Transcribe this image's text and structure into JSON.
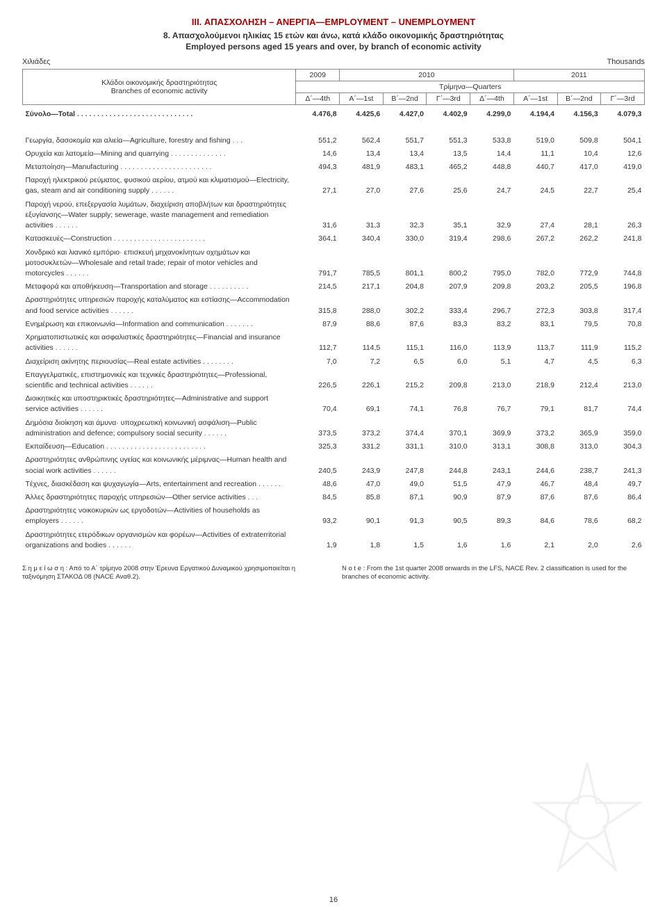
{
  "header": {
    "section": "III. ΑΠΑΣΧΟΛΗΣΗ – ΑΝΕΡΓΙΑ—EMPLOYMENT – UNEMPLOYMENT",
    "title_gr": "8. Απασχολούμενοι ηλικίας 15 ετών και άνω, κατά κλάδο οικονομικής δραστηριότητας",
    "title_en": "Employed persons aged 15 years and over, by branch of economic activity",
    "unit_left": "Xιλιάδες",
    "unit_right": "Thousands"
  },
  "table_header": {
    "stub_gr": "Κλάδοι οικονομικής δραστηριότητας",
    "stub_en": "Branches of economic activity",
    "y2009": "2009",
    "y2010": "2010",
    "y2011": "2011",
    "quarters": "Τρίμηνα—Quarters",
    "cols": [
      "Δ΄—4th",
      "A΄—1st",
      "B΄—2nd",
      "Γ΄—3rd",
      "Δ΄—4th",
      "A΄—1st",
      "B΄—2nd",
      "Γ΄—3rd"
    ]
  },
  "total": {
    "label": "Σύνολο—Total",
    "values": [
      "4.476,8",
      "4.425,6",
      "4.427,0",
      "4.402,9",
      "4.299,0",
      "4.194,4",
      "4.156,3",
      "4.079,3"
    ]
  },
  "rows": [
    {
      "label": "Γεωργία, δασοκομία και αλιεία—Agriculture, forestry and fishing",
      "values": [
        "551,2",
        "562,4",
        "551,7",
        "551,3",
        "533,8",
        "519,0",
        "509,8",
        "504,1"
      ]
    },
    {
      "label": "Ορυχεία και λατομεία—Mining and quarrying",
      "values": [
        "14,6",
        "13,4",
        "13,4",
        "13,5",
        "14,4",
        "11,1",
        "10,4",
        "12,6"
      ]
    },
    {
      "label": "Mεταποίηση—Manufacturing",
      "values": [
        "494,3",
        "481,9",
        "483,1",
        "465,2",
        "448,8",
        "440,7",
        "417,0",
        "419,0"
      ]
    },
    {
      "label": "Παροχή ηλεκτρικού ρεύματος, φυσικού αερίου, ατμού και κλιματισμού—Electricity, gas, steam and air conditioning supply",
      "indent": true,
      "values": [
        "27,1",
        "27,0",
        "27,6",
        "25,6",
        "24,7",
        "24,5",
        "22,7",
        "25,4"
      ]
    },
    {
      "label": "Παροχή νερού, επεξεργασία λυμάτων, διαχείριση αποβλήτων και δραστηριότητες εξυγίανσης—Water supply; sewerage, waste management and remediation activities",
      "indent": true,
      "values": [
        "31,6",
        "31,3",
        "32,3",
        "35,1",
        "32,9",
        "27,4",
        "28,1",
        "26,3"
      ]
    },
    {
      "label": "Κατασκευές—Construction",
      "values": [
        "364,1",
        "340,4",
        "330,0",
        "319,4",
        "298,6",
        "267,2",
        "262,2",
        "241,8"
      ]
    },
    {
      "label": "Xονδρικό και λιανικό εμπόριο· επισκευή μηχανοκίνητων οχημάτων και μοτοσυκλετών—Wholesale and retail trade; repair of motor vehicles and motorcycles",
      "indent": true,
      "values": [
        "791,7",
        "785,5",
        "801,1",
        "800,2",
        "795,0",
        "782,0",
        "772,9",
        "744,8"
      ]
    },
    {
      "label": "Μεταφορά και αποθήκευση—Transportation and storage",
      "values": [
        "214,5",
        "217,1",
        "204,8",
        "207,9",
        "209,8",
        "203,2",
        "205,5",
        "196,8"
      ]
    },
    {
      "label": "Δραστηριότητες υπηρεσιών παροχής καταλύματος και εστίασης—Accommodation and food service activities",
      "indent": true,
      "values": [
        "315,8",
        "288,0",
        "302,2",
        "333,4",
        "296,7",
        "272,3",
        "303,8",
        "317,4"
      ]
    },
    {
      "label": "Eνημέρωση και επικοινωνία—Information and communication",
      "values": [
        "87,9",
        "88,6",
        "87,6",
        "83,3",
        "83,2",
        "83,1",
        "79,5",
        "70,8"
      ]
    },
    {
      "label": "Xρηματοπιστωτικές και ασφαλιστικές δραστηριότητες—Financial and insurance activities",
      "indent": true,
      "values": [
        "112,7",
        "114,5",
        "115,1",
        "116,0",
        "113,9",
        "113,7",
        "111,9",
        "115,2"
      ]
    },
    {
      "label": "Διαχείριση ακίνητης περιουσίας—Real estate activities",
      "values": [
        "7,0",
        "7,2",
        "6,5",
        "6,0",
        "5,1",
        "4,7",
        "4,5",
        "6,3"
      ]
    },
    {
      "label": "Eπαγγελματικές, επιστημονικές και τεχνικές δραστηριότητες—Professional, scientific and technical activities",
      "indent": true,
      "values": [
        "226,5",
        "226,1",
        "215,2",
        "209,8",
        "213,0",
        "218,9",
        "212,4",
        "213,0"
      ]
    },
    {
      "label": "Διοικητικές και υποστηρικτικές δραστηριότητες—Administrative and support service activities",
      "indent": true,
      "values": [
        "70,4",
        "69,1",
        "74,1",
        "76,8",
        "76,7",
        "79,1",
        "81,7",
        "74,4"
      ]
    },
    {
      "label": "Δημόσια διοίκηση και άμυνα· υποχρεωτική κοινωνική ασφάλιση—Public administration and defence; compulsory social security",
      "indent": true,
      "values": [
        "373,5",
        "373,2",
        "374,4",
        "370,1",
        "369,9",
        "373,2",
        "365,9",
        "359,0"
      ]
    },
    {
      "label": "Eκπαίδευση—Education",
      "values": [
        "325,3",
        "331,2",
        "331,1",
        "310,0",
        "313,1",
        "308,8",
        "313,0",
        "304,3"
      ]
    },
    {
      "label": "Δραστηριότητες ανθρώπινης υγείας και κοινωνικής μέριμνας—Human health and social work activities",
      "indent": true,
      "values": [
        "240,5",
        "243,9",
        "247,8",
        "244,8",
        "243,1",
        "244,6",
        "238,7",
        "241,3"
      ]
    },
    {
      "label": "Tέχνες, διασκέδαση και ψυχαγωγία—Arts, entertainment and recreation",
      "indent": true,
      "values": [
        "48,6",
        "47,0",
        "49,0",
        "51,5",
        "47,9",
        "46,7",
        "48,4",
        "49,7"
      ]
    },
    {
      "label": "Άλλες δραστηριότητες παροχής υπηρεσιών—Other service activities",
      "values": [
        "84,5",
        "85,8",
        "87,1",
        "90,9",
        "87,9",
        "87,6",
        "87,6",
        "86,4"
      ]
    },
    {
      "label": "Δραστηριότητες νοικοκυριών ως εργοδοτών—Activities of households as employers",
      "indent": true,
      "values": [
        "93,2",
        "90,1",
        "91,3",
        "90,5",
        "89,3",
        "84,6",
        "78,6",
        "68,2"
      ]
    },
    {
      "label": "Δραστηριότητες ετερόδικων οργανισμών και φορέων—Activities of extraterritorial organizations and bodies",
      "indent": true,
      "values": [
        "1,9",
        "1,8",
        "1,5",
        "1,6",
        "1,6",
        "2,1",
        "2,0",
        "2,6"
      ]
    }
  ],
  "notes": {
    "left": "Σ η μ ε ί ω σ η :  Από το Α΄ τρίμηνο 2008 στην Έρευνα Εργατικού Δυναμικού χρησιμοποιείται η ταξινόμηση ΣΤΑΚΟΔ 08 (NACE Αναθ.2).",
    "right": "N o t e :  From the 1st quarter 2008 onwards in the LFS, NACE Rev. 2 classification is used for the branches of economic activity."
  },
  "page_number": "16",
  "styles": {
    "header_color": "#a00000",
    "border_color": "#888888",
    "label_col_width": 380,
    "num_col_width": 54
  }
}
